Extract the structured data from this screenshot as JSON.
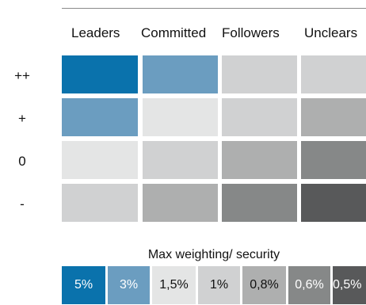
{
  "chart_data": {
    "type": "heatmap",
    "columns": [
      "Leaders",
      "Committed",
      "Followers",
      "Unclears"
    ],
    "rows": [
      "++",
      "+",
      "0",
      "-"
    ],
    "cell_levels": [
      [
        "5%",
        "3%",
        "1%",
        "1%"
      ],
      [
        "3%",
        "1,5%",
        "1%",
        "0,8%"
      ],
      [
        "1,5%",
        "1%",
        "0,8%",
        "0,6%"
      ],
      [
        "1%",
        "0,8%",
        "0,6%",
        "0,5%"
      ]
    ],
    "legend": {
      "title": "Max weighting/ security",
      "items": [
        {
          "label": "5%",
          "color": "#0a72ac",
          "text_color": "#ffffff"
        },
        {
          "label": "3%",
          "color": "#6b9dc0",
          "text_color": "#ffffff"
        },
        {
          "label": "1,5%",
          "color": "#e4e5e5",
          "text_color": "#111111"
        },
        {
          "label": "1%",
          "color": "#d0d1d2",
          "text_color": "#111111"
        },
        {
          "label": "0,8%",
          "color": "#aeafaf",
          "text_color": "#111111"
        },
        {
          "label": "0,6%",
          "color": "#868888",
          "text_color": "#ffffff"
        },
        {
          "label": "0,5%",
          "color": "#58595a",
          "text_color": "#ffffff"
        }
      ]
    }
  }
}
